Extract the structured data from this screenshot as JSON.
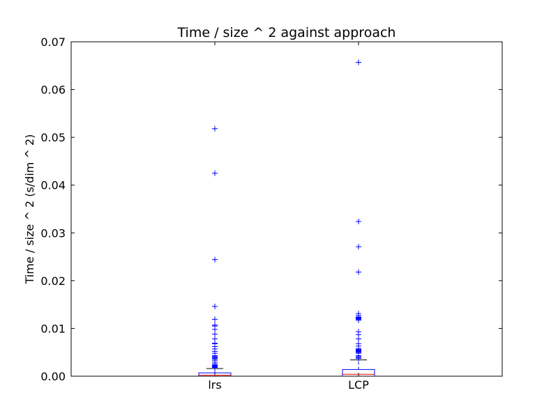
{
  "chart_data": {
    "type": "box",
    "title": "Time / size ^ 2 against approach",
    "xlabel": "",
    "ylabel": "Time / size ^ 2 (s/dim ^ 2)",
    "ylim": [
      0,
      0.07
    ],
    "yticks": [
      "0.00",
      "0.01",
      "0.02",
      "0.03",
      "0.04",
      "0.05",
      "0.06",
      "0.07"
    ],
    "categories": [
      "lrs",
      "LCP"
    ],
    "boxes": [
      {
        "name": "lrs",
        "whisker_low": 0.0,
        "q1": 0.0,
        "median": 0.0002,
        "q3": 0.0007,
        "whisker_high": 0.0016,
        "fliers": [
          0.0018,
          0.0019,
          0.002,
          0.0021,
          0.0022,
          0.0023,
          0.0025,
          0.0028,
          0.0032,
          0.0035,
          0.0037,
          0.0039,
          0.004,
          0.0041,
          0.0043,
          0.0048,
          0.0052,
          0.0057,
          0.0062,
          0.0068,
          0.0069,
          0.0078,
          0.0088,
          0.0098,
          0.0105,
          0.0107,
          0.0119,
          0.0146,
          0.0244,
          0.0425,
          0.0518
        ]
      },
      {
        "name": "LCP",
        "whisker_low": 0.0,
        "q1": 0.0,
        "median": 0.0004,
        "q3": 0.0014,
        "whisker_high": 0.0034,
        "fliers": [
          0.0037,
          0.0039,
          0.0041,
          0.0043,
          0.0048,
          0.005,
          0.0051,
          0.0052,
          0.0053,
          0.0054,
          0.0055,
          0.0056,
          0.0058,
          0.0063,
          0.0068,
          0.0078,
          0.0087,
          0.0093,
          0.0117,
          0.0119,
          0.012,
          0.0121,
          0.0122,
          0.0123,
          0.0124,
          0.0127,
          0.0131,
          0.0218,
          0.0271,
          0.0324,
          0.0657
        ]
      }
    ],
    "colors": {
      "box": "#0000ff",
      "median": "#ff0000",
      "whisker_cap": "#000000",
      "flier": "#0000ff"
    }
  }
}
